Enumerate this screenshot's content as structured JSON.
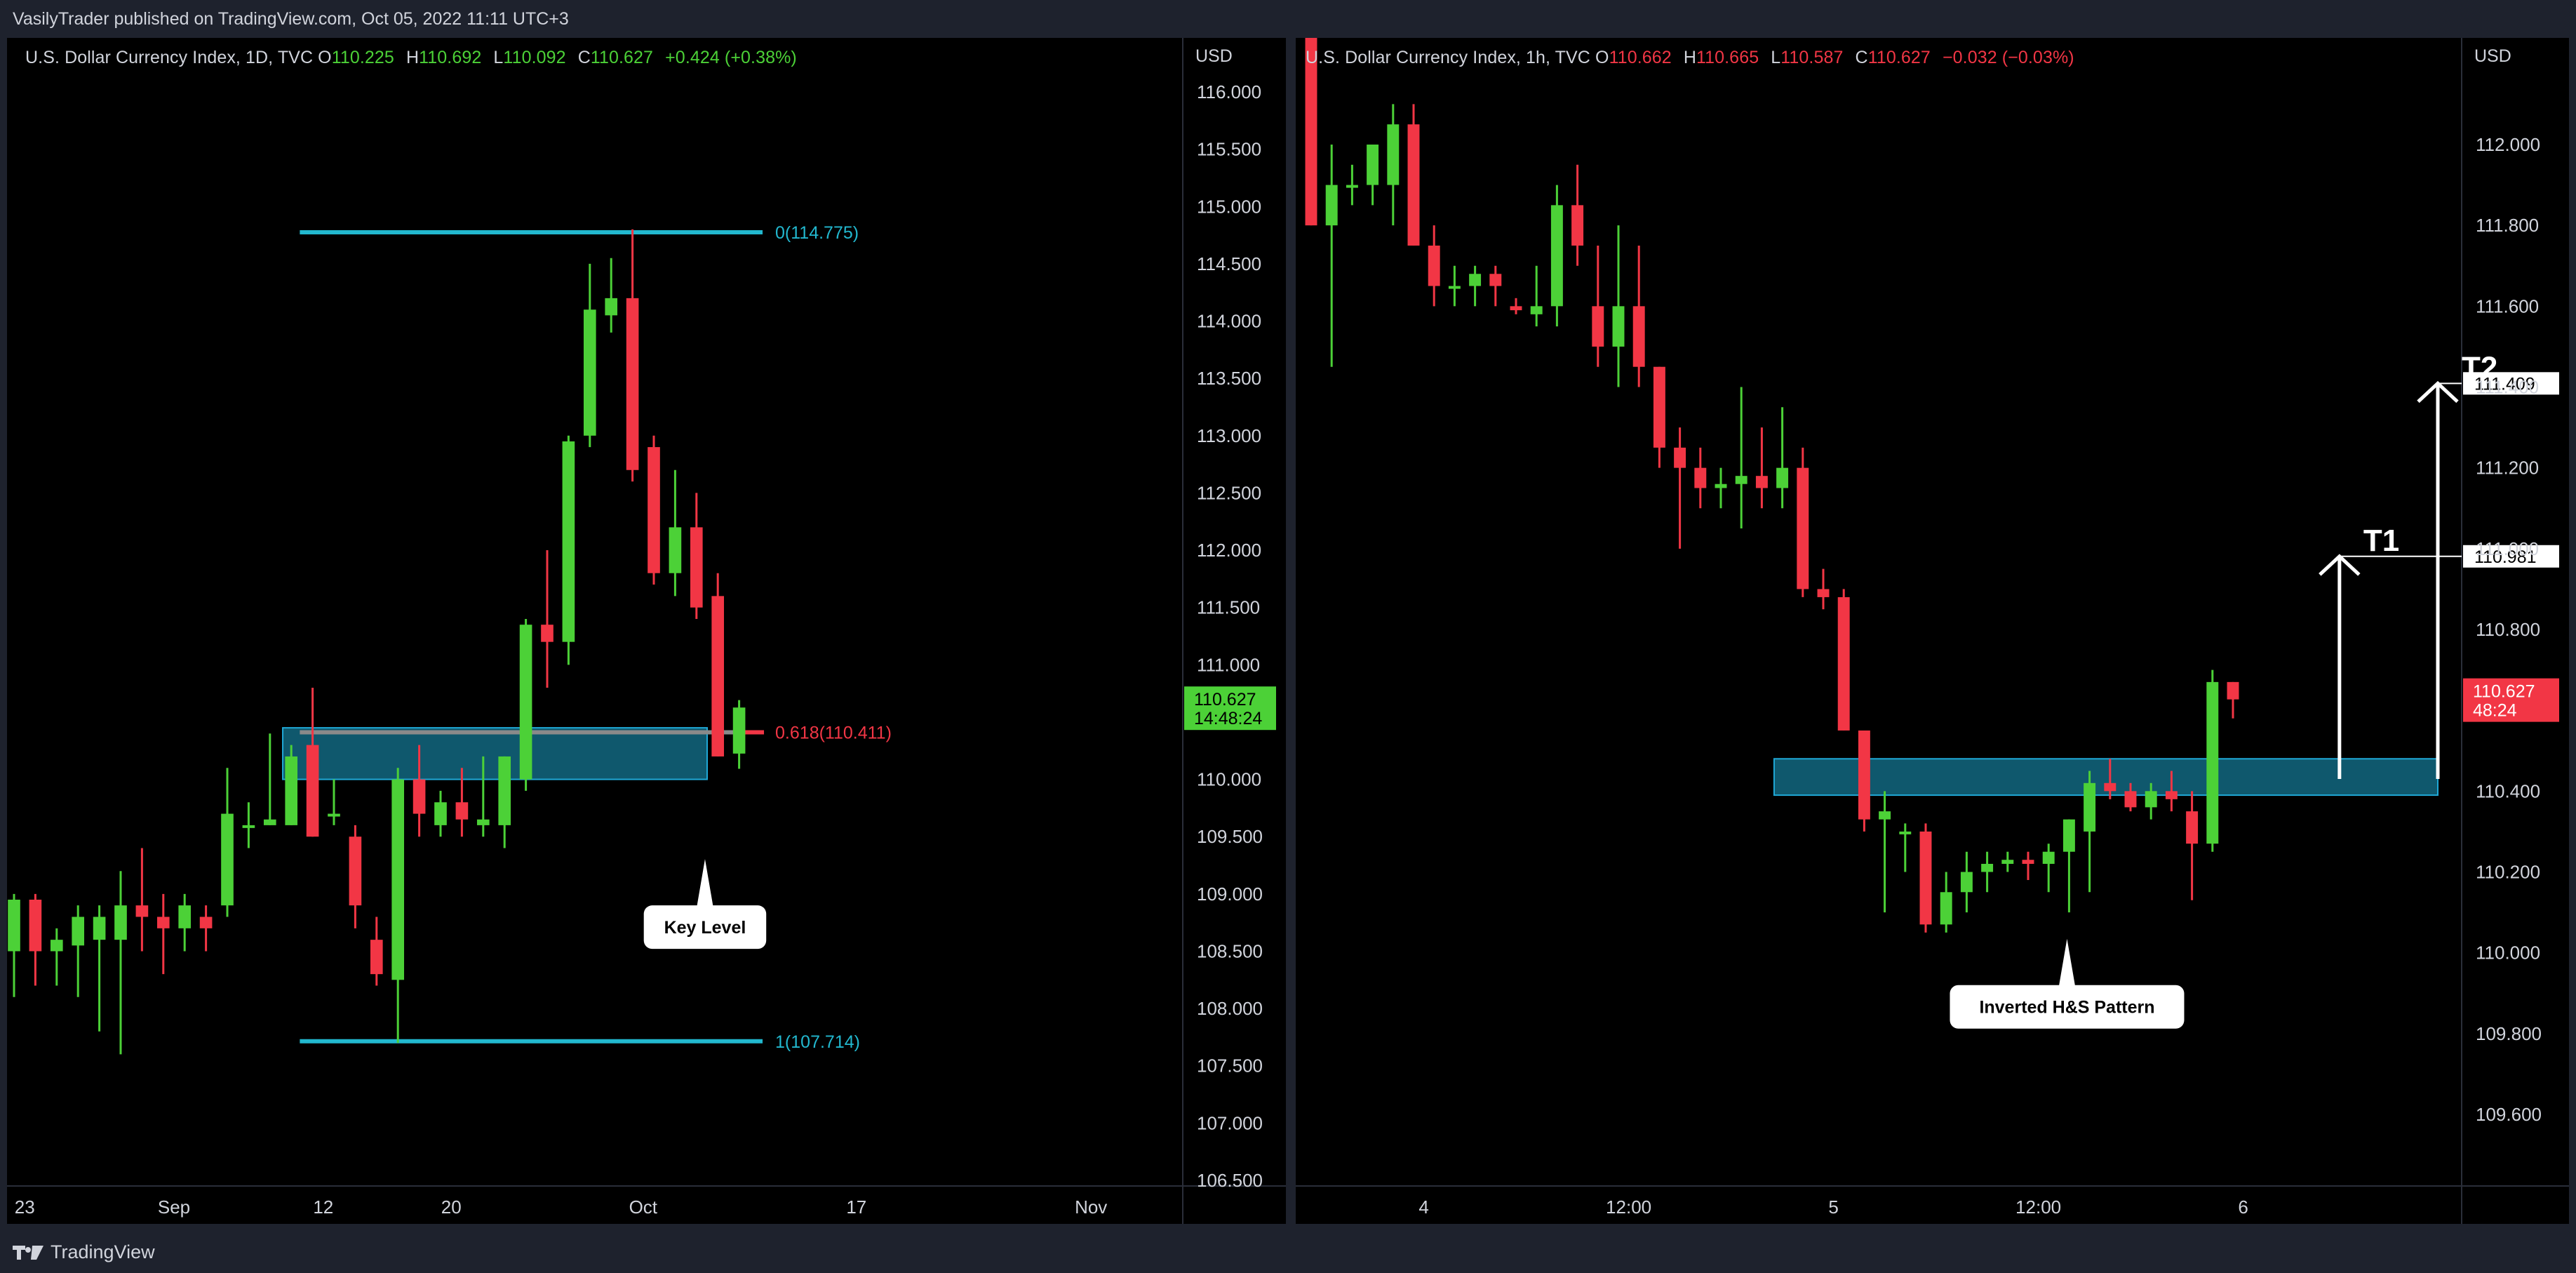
{
  "header": {
    "published_text": "VasilyTrader published on TradingView.com, Oct 05, 2022 11:11 UTC+3"
  },
  "footer": {
    "brand": "TradingView",
    "brand_icon": "tradingview-logo-icon"
  },
  "colors": {
    "bull": "#4cd137",
    "bear": "#f23645",
    "fib": "#22b8cf",
    "zone": "#1787a8",
    "panel_bg": "#000000",
    "frame_bg": "#1e222d"
  },
  "chart_data": [
    {
      "type": "candlestick",
      "symbol_line": "U.S. Dollar Currency Index, 1D, TVC",
      "ohlc": {
        "o_label": "O",
        "o": "110.225",
        "h_label": "H",
        "h": "110.692",
        "l_label": "L",
        "l": "110.092",
        "c_label": "C",
        "c": "110.627",
        "change": "+0.424 (+0.38%)"
      },
      "currency": "USD",
      "ylim": [
        106.5,
        116.5
      ],
      "y_ticks": [
        "116.000",
        "115.500",
        "115.000",
        "114.500",
        "114.000",
        "113.500",
        "113.000",
        "112.500",
        "112.000",
        "111.500",
        "111.000",
        "110.500",
        "110.000",
        "109.500",
        "109.000",
        "108.500",
        "108.000",
        "107.500",
        "107.000",
        "106.500"
      ],
      "x_ticks": [
        {
          "label": "23",
          "index": 0.5
        },
        {
          "label": "Sep",
          "index": 7.5
        },
        {
          "label": "12",
          "index": 14.5
        },
        {
          "label": "20",
          "index": 20.5
        },
        {
          "label": "Oct",
          "index": 29.5
        },
        {
          "label": "17",
          "index": 39.5
        },
        {
          "label": "Nov",
          "index": 50.5
        }
      ],
      "candles": [
        {
          "o": 108.5,
          "h": 109.0,
          "l": 108.1,
          "c": 108.95
        },
        {
          "o": 108.95,
          "h": 109.0,
          "l": 108.2,
          "c": 108.5
        },
        {
          "o": 108.5,
          "h": 108.7,
          "l": 108.2,
          "c": 108.6
        },
        {
          "o": 108.55,
          "h": 108.9,
          "l": 108.1,
          "c": 108.8
        },
        {
          "o": 108.6,
          "h": 108.9,
          "l": 107.8,
          "c": 108.8
        },
        {
          "o": 108.6,
          "h": 109.2,
          "l": 107.6,
          "c": 108.9
        },
        {
          "o": 108.9,
          "h": 109.4,
          "l": 108.5,
          "c": 108.8
        },
        {
          "o": 108.8,
          "h": 109.0,
          "l": 108.3,
          "c": 108.7
        },
        {
          "o": 108.7,
          "h": 109.0,
          "l": 108.5,
          "c": 108.9
        },
        {
          "o": 108.8,
          "h": 108.9,
          "l": 108.5,
          "c": 108.7
        },
        {
          "o": 108.9,
          "h": 110.1,
          "l": 108.8,
          "c": 109.7
        },
        {
          "o": 109.6,
          "h": 109.8,
          "l": 109.4,
          "c": 109.6
        },
        {
          "o": 109.6,
          "h": 110.4,
          "l": 109.6,
          "c": 109.65
        },
        {
          "o": 109.6,
          "h": 110.3,
          "l": 109.6,
          "c": 110.2
        },
        {
          "o": 110.3,
          "h": 110.8,
          "l": 109.5,
          "c": 109.5
        },
        {
          "o": 109.7,
          "h": 110.0,
          "l": 109.6,
          "c": 109.7
        },
        {
          "o": 109.5,
          "h": 109.6,
          "l": 108.7,
          "c": 108.9
        },
        {
          "o": 108.6,
          "h": 108.8,
          "l": 108.2,
          "c": 108.3
        },
        {
          "o": 108.25,
          "h": 110.1,
          "l": 107.7,
          "c": 110.0
        },
        {
          "o": 110.0,
          "h": 110.3,
          "l": 109.5,
          "c": 109.7
        },
        {
          "o": 109.6,
          "h": 109.9,
          "l": 109.5,
          "c": 109.8
        },
        {
          "o": 109.8,
          "h": 110.1,
          "l": 109.5,
          "c": 109.65
        },
        {
          "o": 109.6,
          "h": 110.2,
          "l": 109.5,
          "c": 109.65
        },
        {
          "o": 109.6,
          "h": 110.2,
          "l": 109.4,
          "c": 110.2
        },
        {
          "o": 110.0,
          "h": 111.4,
          "l": 109.9,
          "c": 111.35
        },
        {
          "o": 111.35,
          "h": 112.0,
          "l": 110.8,
          "c": 111.2
        },
        {
          "o": 111.2,
          "h": 113.0,
          "l": 111.0,
          "c": 112.95
        },
        {
          "o": 113.0,
          "h": 114.5,
          "l": 112.9,
          "c": 114.1
        },
        {
          "o": 114.05,
          "h": 114.55,
          "l": 113.9,
          "c": 114.2
        },
        {
          "o": 114.2,
          "h": 114.8,
          "l": 112.6,
          "c": 112.7
        },
        {
          "o": 112.9,
          "h": 113.0,
          "l": 111.7,
          "c": 111.8
        },
        {
          "o": 111.8,
          "h": 112.7,
          "l": 111.6,
          "c": 112.2
        },
        {
          "o": 112.2,
          "h": 112.5,
          "l": 111.4,
          "c": 111.5
        },
        {
          "o": 111.6,
          "h": 111.8,
          "l": 110.2,
          "c": 110.2
        },
        {
          "o": 110.225,
          "h": 110.692,
          "l": 110.092,
          "c": 110.627
        }
      ],
      "fib_levels": [
        {
          "label": "0(114.775)",
          "value": 114.775,
          "color": "#22b8cf"
        },
        {
          "label": "0.618(110.411)",
          "value": 110.411,
          "color": "#f23645"
        },
        {
          "label": "1(107.714)",
          "value": 107.714,
          "color": "#22b8cf"
        }
      ],
      "zone": {
        "from_index": 12.6,
        "to_index": 32.5,
        "low": 110.0,
        "high": 110.45
      },
      "annotation": {
        "text": "Key Level",
        "index": 32.4,
        "value": 108.9
      },
      "price_tag": {
        "price": "110.627",
        "countdown": "14:48:24",
        "value": 110.627
      }
    },
    {
      "type": "candlestick",
      "symbol_line": "U.S. Dollar Currency Index, 1h, TVC",
      "ohlc": {
        "o_label": "O",
        "o": "110.662",
        "h_label": "H",
        "h": "110.665",
        "l_label": "L",
        "l": "110.587",
        "c_label": "C",
        "c": "110.627",
        "change": "−0.032 (−0.03%)"
      },
      "currency": "USD",
      "ylim": [
        109.4,
        112.3
      ],
      "y_ticks": [
        "112.000",
        "111.800",
        "111.600",
        "111.400",
        "111.200",
        "111.000",
        "110.800",
        "110.600",
        "110.400",
        "110.200",
        "110.000",
        "109.800",
        "109.600"
      ],
      "x_ticks": [
        {
          "label": "4",
          "index": 5.5
        },
        {
          "label": "12:00",
          "index": 15.5
        },
        {
          "label": "5",
          "index": 25.5
        },
        {
          "label": "12:00",
          "index": 35.5
        },
        {
          "label": "6",
          "index": 45.5
        }
      ],
      "candles": [
        {
          "o": 112.3,
          "h": 112.3,
          "l": 111.8,
          "c": 111.8
        },
        {
          "o": 111.8,
          "h": 112.0,
          "l": 111.45,
          "c": 111.9
        },
        {
          "o": 111.9,
          "h": 111.95,
          "l": 111.85,
          "c": 111.9
        },
        {
          "o": 111.9,
          "h": 112.0,
          "l": 111.85,
          "c": 112.0
        },
        {
          "o": 111.9,
          "h": 112.1,
          "l": 111.8,
          "c": 112.05
        },
        {
          "o": 112.05,
          "h": 112.1,
          "l": 111.75,
          "c": 111.75
        },
        {
          "o": 111.75,
          "h": 111.8,
          "l": 111.6,
          "c": 111.65
        },
        {
          "o": 111.65,
          "h": 111.7,
          "l": 111.6,
          "c": 111.65
        },
        {
          "o": 111.65,
          "h": 111.7,
          "l": 111.6,
          "c": 111.68
        },
        {
          "o": 111.68,
          "h": 111.7,
          "l": 111.6,
          "c": 111.65
        },
        {
          "o": 111.6,
          "h": 111.62,
          "l": 111.58,
          "c": 111.59
        },
        {
          "o": 111.58,
          "h": 111.7,
          "l": 111.55,
          "c": 111.6
        },
        {
          "o": 111.6,
          "h": 111.9,
          "l": 111.55,
          "c": 111.85
        },
        {
          "o": 111.85,
          "h": 111.95,
          "l": 111.7,
          "c": 111.75
        },
        {
          "o": 111.6,
          "h": 111.75,
          "l": 111.45,
          "c": 111.5
        },
        {
          "o": 111.5,
          "h": 111.8,
          "l": 111.4,
          "c": 111.6
        },
        {
          "o": 111.6,
          "h": 111.75,
          "l": 111.4,
          "c": 111.45
        },
        {
          "o": 111.45,
          "h": 111.45,
          "l": 111.2,
          "c": 111.25
        },
        {
          "o": 111.25,
          "h": 111.3,
          "l": 111.0,
          "c": 111.2
        },
        {
          "o": 111.2,
          "h": 111.25,
          "l": 111.1,
          "c": 111.15
        },
        {
          "o": 111.15,
          "h": 111.2,
          "l": 111.1,
          "c": 111.16
        },
        {
          "o": 111.16,
          "h": 111.4,
          "l": 111.05,
          "c": 111.18
        },
        {
          "o": 111.18,
          "h": 111.3,
          "l": 111.1,
          "c": 111.15
        },
        {
          "o": 111.15,
          "h": 111.35,
          "l": 111.1,
          "c": 111.2
        },
        {
          "o": 111.2,
          "h": 111.25,
          "l": 110.88,
          "c": 110.9
        },
        {
          "o": 110.9,
          "h": 110.95,
          "l": 110.85,
          "c": 110.88
        },
        {
          "o": 110.88,
          "h": 110.9,
          "l": 110.55,
          "c": 110.55
        },
        {
          "o": 110.55,
          "h": 110.55,
          "l": 110.3,
          "c": 110.33
        },
        {
          "o": 110.33,
          "h": 110.4,
          "l": 110.1,
          "c": 110.35
        },
        {
          "o": 110.3,
          "h": 110.32,
          "l": 110.2,
          "c": 110.3
        },
        {
          "o": 110.3,
          "h": 110.32,
          "l": 110.05,
          "c": 110.07
        },
        {
          "o": 110.07,
          "h": 110.2,
          "l": 110.05,
          "c": 110.15
        },
        {
          "o": 110.15,
          "h": 110.25,
          "l": 110.1,
          "c": 110.2
        },
        {
          "o": 110.2,
          "h": 110.25,
          "l": 110.15,
          "c": 110.22
        },
        {
          "o": 110.22,
          "h": 110.25,
          "l": 110.2,
          "c": 110.23
        },
        {
          "o": 110.23,
          "h": 110.25,
          "l": 110.18,
          "c": 110.22
        },
        {
          "o": 110.22,
          "h": 110.27,
          "l": 110.15,
          "c": 110.25
        },
        {
          "o": 110.25,
          "h": 110.33,
          "l": 110.1,
          "c": 110.33
        },
        {
          "o": 110.3,
          "h": 110.45,
          "l": 110.15,
          "c": 110.42
        },
        {
          "o": 110.42,
          "h": 110.48,
          "l": 110.38,
          "c": 110.4
        },
        {
          "o": 110.4,
          "h": 110.42,
          "l": 110.35,
          "c": 110.36
        },
        {
          "o": 110.36,
          "h": 110.42,
          "l": 110.33,
          "c": 110.4
        },
        {
          "o": 110.4,
          "h": 110.45,
          "l": 110.35,
          "c": 110.38
        },
        {
          "o": 110.35,
          "h": 110.4,
          "l": 110.13,
          "c": 110.27
        },
        {
          "o": 110.27,
          "h": 110.7,
          "l": 110.25,
          "c": 110.67
        },
        {
          "o": 110.67,
          "h": 110.67,
          "l": 110.58,
          "c": 110.627
        }
      ],
      "zone": {
        "from_index": 22.6,
        "to_index": 55.0,
        "low": 110.39,
        "high": 110.48
      },
      "targets": [
        {
          "label": "T1",
          "price": "110.981",
          "value": 110.981,
          "arrow_index": 50.2,
          "from": 110.43
        },
        {
          "label": "T2",
          "price": "111.409",
          "value": 111.409,
          "arrow_index": 55.0,
          "from": 110.43
        }
      ],
      "annotation": {
        "text": "Inverted H&S Pattern",
        "index": 36.9,
        "value": 109.92
      },
      "price_tag": {
        "price": "110.627",
        "countdown": "48:24",
        "value": 110.627
      }
    }
  ]
}
